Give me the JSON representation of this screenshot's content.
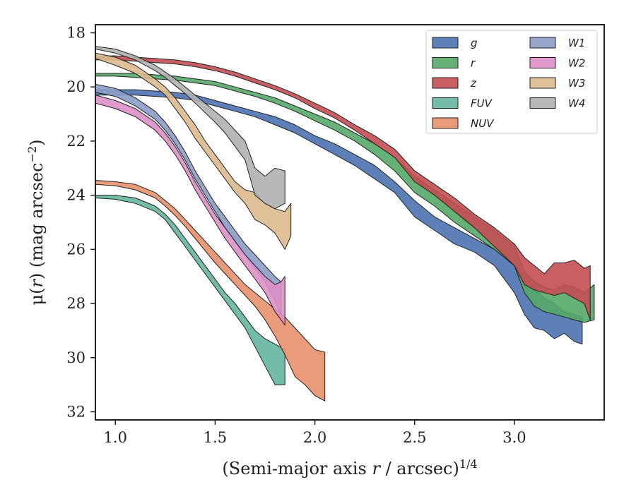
{
  "chart_data": {
    "type": "area",
    "title": "",
    "xlabel": "(Semi-major axis r / arcsec)^{1/4}",
    "ylabel": "μ(r) (mag arcsec^{−2})",
    "xlim": [
      0.9,
      3.45
    ],
    "ylim": [
      32.3,
      17.7
    ],
    "y_inverted": true,
    "grid": false,
    "legend_position": "top-right",
    "legend_columns": 2,
    "xticks": [
      1.0,
      1.5,
      2.0,
      2.5,
      3.0
    ],
    "xtick_labels": [
      "1.0",
      "1.5",
      "2.0",
      "2.5",
      "3.0"
    ],
    "yticks": [
      18,
      20,
      22,
      24,
      26,
      28,
      30,
      32
    ],
    "ytick_labels": [
      "18",
      "20",
      "22",
      "24",
      "26",
      "28",
      "30",
      "32"
    ],
    "series": [
      {
        "name": "g",
        "color": "#4c72b0",
        "x": [
          0.9,
          1.0,
          1.1,
          1.2,
          1.3,
          1.4,
          1.5,
          1.6,
          1.7,
          1.8,
          1.9,
          2.0,
          2.1,
          2.2,
          2.3,
          2.4,
          2.5,
          2.6,
          2.7,
          2.8,
          2.9,
          3.0,
          3.05,
          3.1,
          3.15,
          3.2,
          3.25,
          3.3,
          3.34
        ],
        "y1": [
          20.1,
          20.1,
          20.1,
          20.15,
          20.2,
          20.3,
          20.5,
          20.7,
          20.9,
          21.1,
          21.4,
          21.8,
          22.1,
          22.5,
          22.9,
          23.5,
          24.2,
          24.8,
          25.2,
          25.6,
          26.0,
          26.6,
          27.0,
          27.4,
          27.8,
          28.0,
          28.3,
          28.4,
          28.5
        ],
        "y2": [
          20.3,
          20.3,
          20.3,
          20.35,
          20.4,
          20.5,
          20.7,
          20.9,
          21.1,
          21.4,
          21.7,
          22.1,
          22.5,
          22.9,
          23.4,
          23.9,
          24.8,
          25.3,
          25.8,
          26.1,
          26.6,
          27.6,
          28.4,
          28.9,
          29.0,
          29.3,
          29.1,
          29.4,
          29.5
        ]
      },
      {
        "name": "r",
        "color": "#55a868",
        "x": [
          0.9,
          1.0,
          1.1,
          1.2,
          1.3,
          1.4,
          1.5,
          1.6,
          1.7,
          1.8,
          1.9,
          2.0,
          2.1,
          2.2,
          2.3,
          2.4,
          2.5,
          2.6,
          2.7,
          2.8,
          2.9,
          3.0,
          3.05,
          3.1,
          3.15,
          3.2,
          3.25,
          3.3,
          3.35,
          3.4
        ],
        "y1": [
          19.5,
          19.5,
          19.5,
          19.55,
          19.6,
          19.7,
          19.8,
          20.0,
          20.2,
          20.4,
          20.7,
          21.0,
          21.3,
          21.7,
          22.1,
          22.6,
          23.3,
          23.8,
          24.3,
          24.8,
          25.3,
          25.9,
          26.8,
          27.2,
          27.4,
          27.5,
          27.3,
          27.4,
          27.6,
          27.3
        ],
        "y2": [
          19.6,
          19.6,
          19.65,
          19.7,
          19.75,
          19.85,
          19.95,
          20.15,
          20.35,
          20.6,
          20.9,
          21.25,
          21.6,
          22.0,
          22.5,
          23.1,
          23.9,
          24.4,
          25.0,
          25.5,
          26.0,
          26.6,
          27.6,
          28.1,
          28.3,
          28.4,
          28.5,
          28.6,
          28.7,
          28.6
        ]
      },
      {
        "name": "z",
        "color": "#c44e52",
        "x": [
          0.9,
          1.0,
          1.1,
          1.2,
          1.3,
          1.4,
          1.5,
          1.6,
          1.7,
          1.8,
          1.9,
          2.0,
          2.1,
          2.2,
          2.3,
          2.4,
          2.5,
          2.6,
          2.7,
          2.8,
          2.9,
          3.0,
          3.05,
          3.1,
          3.15,
          3.2,
          3.25,
          3.3,
          3.35,
          3.38
        ],
        "y1": [
          18.85,
          18.85,
          18.9,
          18.95,
          19.0,
          19.1,
          19.25,
          19.45,
          19.7,
          19.95,
          20.25,
          20.6,
          20.95,
          21.4,
          21.8,
          22.3,
          23.1,
          23.6,
          24.1,
          24.7,
          25.2,
          25.8,
          26.3,
          26.6,
          26.9,
          26.5,
          26.5,
          26.4,
          26.7,
          26.6
        ],
        "y2": [
          19.0,
          19.0,
          19.05,
          19.1,
          19.15,
          19.25,
          19.4,
          19.6,
          19.85,
          20.1,
          20.4,
          20.8,
          21.15,
          21.6,
          22.1,
          22.6,
          23.5,
          24.0,
          24.6,
          25.2,
          25.9,
          26.6,
          27.3,
          27.5,
          27.6,
          27.7,
          27.6,
          27.8,
          28.0,
          28.6
        ]
      },
      {
        "name": "FUV",
        "color": "#64b5a0",
        "x": [
          0.9,
          1.0,
          1.1,
          1.2,
          1.25,
          1.3,
          1.35,
          1.4,
          1.45,
          1.5,
          1.55,
          1.6,
          1.65,
          1.7,
          1.75,
          1.8,
          1.85
        ],
        "y1": [
          24.0,
          24.0,
          24.1,
          24.4,
          24.7,
          25.1,
          25.6,
          26.1,
          26.6,
          27.1,
          27.6,
          28.0,
          28.5,
          29.0,
          29.3,
          29.5,
          29.7
        ],
        "y2": [
          24.1,
          24.15,
          24.3,
          24.6,
          24.9,
          25.4,
          25.9,
          26.4,
          26.9,
          27.4,
          27.9,
          28.4,
          28.9,
          29.6,
          30.3,
          31.0,
          31.0
        ]
      },
      {
        "name": "NUV",
        "color": "#e8906a",
        "x": [
          0.9,
          1.0,
          1.1,
          1.2,
          1.25,
          1.3,
          1.35,
          1.4,
          1.45,
          1.5,
          1.55,
          1.6,
          1.65,
          1.7,
          1.75,
          1.8,
          1.85,
          1.9,
          1.95,
          2.0,
          2.05
        ],
        "y1": [
          23.45,
          23.5,
          23.6,
          23.9,
          24.2,
          24.5,
          24.9,
          25.3,
          25.7,
          26.1,
          26.5,
          26.9,
          27.3,
          27.6,
          27.9,
          28.2,
          28.5,
          28.9,
          29.3,
          29.7,
          29.8
        ],
        "y2": [
          23.6,
          23.65,
          23.8,
          24.1,
          24.4,
          24.75,
          25.15,
          25.6,
          26.05,
          26.5,
          26.9,
          27.3,
          27.7,
          28.1,
          28.6,
          29.2,
          29.9,
          30.7,
          31.0,
          31.4,
          31.6
        ]
      },
      {
        "name": "W1",
        "color": "#8c9cc8",
        "x": [
          0.9,
          1.0,
          1.1,
          1.2,
          1.25,
          1.3,
          1.35,
          1.4,
          1.45,
          1.5,
          1.55,
          1.6,
          1.65,
          1.7,
          1.75,
          1.8,
          1.83
        ],
        "y1": [
          19.9,
          20.05,
          20.4,
          20.9,
          21.3,
          21.8,
          22.4,
          23.1,
          23.7,
          24.3,
          24.8,
          25.3,
          25.8,
          26.2,
          26.6,
          27.0,
          27.2
        ],
        "y2": [
          20.2,
          20.35,
          20.7,
          21.2,
          21.6,
          22.1,
          22.7,
          23.4,
          24.0,
          24.6,
          25.2,
          25.7,
          26.2,
          26.7,
          27.2,
          27.9,
          28.4
        ]
      },
      {
        "name": "W2",
        "color": "#dd8fc6",
        "x": [
          0.9,
          1.0,
          1.1,
          1.2,
          1.25,
          1.3,
          1.35,
          1.4,
          1.45,
          1.5,
          1.55,
          1.6,
          1.65,
          1.7,
          1.75,
          1.8,
          1.83,
          1.85
        ],
        "y1": [
          20.3,
          20.5,
          20.8,
          21.3,
          21.7,
          22.2,
          22.8,
          23.5,
          24.1,
          24.7,
          25.2,
          25.7,
          26.2,
          26.6,
          27.0,
          27.3,
          27.2,
          27.0
        ],
        "y2": [
          20.6,
          20.8,
          21.1,
          21.6,
          22.0,
          22.5,
          23.1,
          23.8,
          24.4,
          25.0,
          25.6,
          26.1,
          26.6,
          27.1,
          27.6,
          28.3,
          28.6,
          28.8
        ]
      },
      {
        "name": "W3",
        "color": "#dcb98e",
        "x": [
          0.9,
          1.0,
          1.1,
          1.2,
          1.25,
          1.3,
          1.35,
          1.4,
          1.45,
          1.5,
          1.55,
          1.6,
          1.65,
          1.7,
          1.75,
          1.8,
          1.85,
          1.88
        ],
        "y1": [
          18.75,
          18.9,
          19.2,
          19.7,
          20.0,
          20.4,
          20.9,
          21.4,
          22.0,
          22.5,
          23.0,
          23.5,
          23.8,
          23.9,
          24.3,
          24.5,
          24.6,
          24.3
        ],
        "y2": [
          18.95,
          19.2,
          19.5,
          20.0,
          20.3,
          20.8,
          21.3,
          21.9,
          22.4,
          22.9,
          23.4,
          23.9,
          24.3,
          24.9,
          25.1,
          25.4,
          26.0,
          25.5
        ]
      },
      {
        "name": "W4",
        "color": "#b0b0b0",
        "x": [
          0.9,
          1.0,
          1.1,
          1.2,
          1.25,
          1.3,
          1.35,
          1.4,
          1.45,
          1.5,
          1.55,
          1.6,
          1.65,
          1.7,
          1.75,
          1.8,
          1.85
        ],
        "y1": [
          18.5,
          18.6,
          18.85,
          19.2,
          19.45,
          19.7,
          20.0,
          20.3,
          20.6,
          20.9,
          21.2,
          21.6,
          22.0,
          23.0,
          23.3,
          23.0,
          23.1
        ],
        "y2": [
          18.6,
          18.75,
          19.0,
          19.4,
          19.65,
          19.95,
          20.25,
          20.6,
          20.95,
          21.3,
          21.7,
          22.2,
          22.7,
          24.0,
          24.3,
          24.5,
          24.3
        ]
      }
    ]
  }
}
